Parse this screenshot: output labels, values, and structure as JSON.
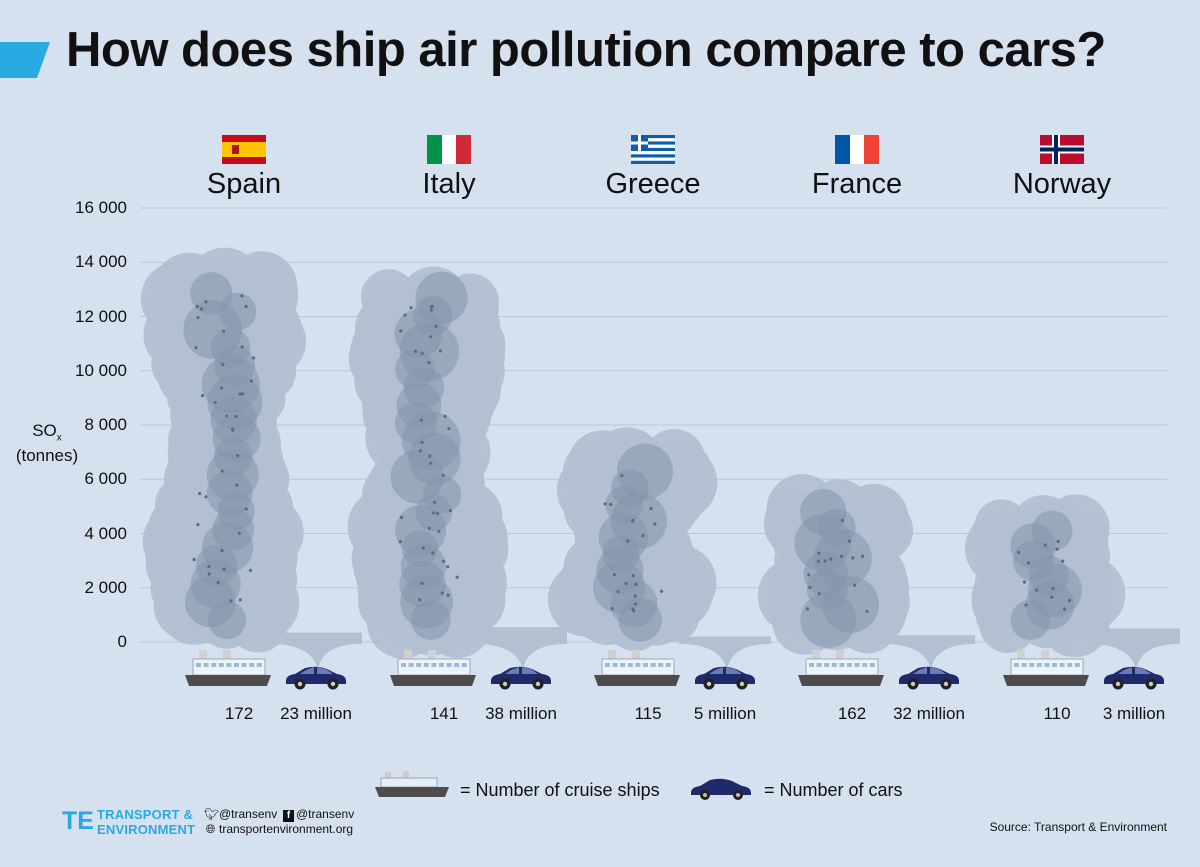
{
  "title": "How does ship air pollution compare to cars?",
  "chart_data": {
    "type": "bar",
    "ylabel_main": "SO",
    "ylabel_sub": "x",
    "ylabel_unit": "(tonnes)",
    "ylim": [
      0,
      16000
    ],
    "yticks": [
      "16 000",
      "14 000",
      "12 000",
      "10 000",
      "8 000",
      "6 000",
      "4 000",
      "2 000",
      "0"
    ],
    "ytick_values": [
      16000,
      14000,
      12000,
      10000,
      8000,
      6000,
      4000,
      2000,
      0
    ],
    "grid": true,
    "categories": [
      "Spain",
      "Italy",
      "Greece",
      "France",
      "Norway"
    ],
    "series": [
      {
        "values": [
          14000,
          13500,
          7400,
          5600,
          4900
        ]
      },
      {
        "values": [
          200,
          400,
          50,
          100,
          350
        ]
      }
    ],
    "cruise_ship_counts": [
      "172",
      "141",
      "115",
      "162",
      "110"
    ],
    "car_counts": [
      "23 million",
      "38 million",
      "5 million",
      "32 million",
      "3 million"
    ]
  },
  "legend": {
    "ships": "= Number of cruise ships",
    "cars": "= Number of cars"
  },
  "footer": {
    "logo_line1": "TRANSPORT &",
    "logo_line2": "ENVIRONMENT",
    "twitter": "@transenv",
    "facebook": "@transenv",
    "website": "transportenvironment.org",
    "source": "Source: Transport & Environment"
  },
  "colors": {
    "background": "#d6e1f0",
    "accent": "#29a9e1",
    "smoke_dark": "#8593ab",
    "smoke_light": "#b2c0d2",
    "car": "#1f2a6b",
    "ship_hull": "#4d4d4d"
  }
}
